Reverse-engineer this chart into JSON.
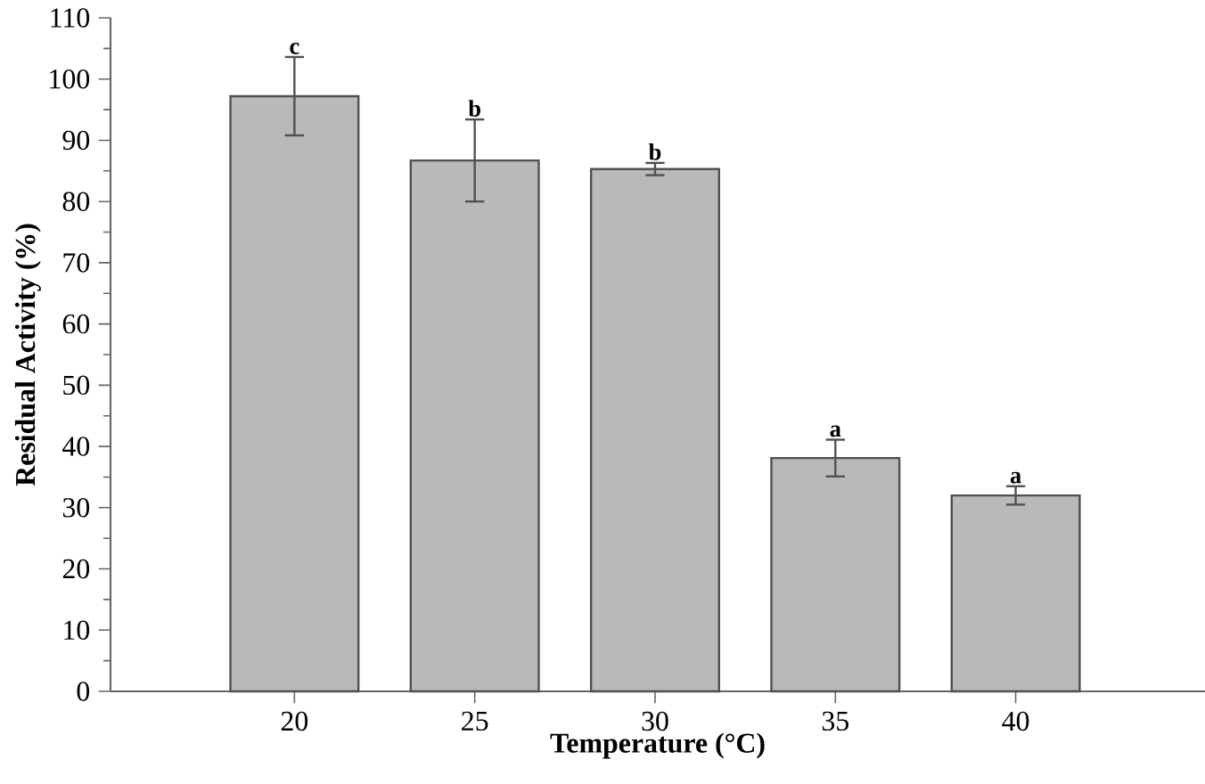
{
  "chart_data": {
    "type": "bar",
    "xlabel": "Temperature (°C)",
    "ylabel": "Residual Activity (%)",
    "categories": [
      "20",
      "25",
      "30",
      "35",
      "40"
    ],
    "values": [
      97.2,
      86.7,
      85.3,
      38.1,
      32.0
    ],
    "errors": [
      6.4,
      6.7,
      1.0,
      3.0,
      1.5
    ],
    "color": "#505050",
    "ylim": [
      0,
      110
    ],
    "yticks": [
      0,
      {
        "value": 5,
        "label": null
      },
      10,
      {
        "value": 15,
        "label": null
      },
      20,
      {
        "value": 25,
        "label": null
      },
      30,
      {
        "value": 35,
        "label": null
      },
      40,
      {
        "value": 45,
        "label": null
      },
      50,
      {
        "value": 55,
        "label": null
      },
      60,
      {
        "value": 65,
        "label": null
      },
      70,
      {
        "value": 75,
        "label": null
      },
      80,
      {
        "value": 85,
        "label": null
      },
      90,
      {
        "value": 95,
        "label": null
      },
      100,
      {
        "value": 105,
        "label": null
      },
      110
    ],
    "annotations": [
      {
        "text": "c",
        "x": "20",
        "y": 103.6
      },
      {
        "text": "b",
        "x": "25",
        "y": 93.4
      },
      {
        "text": "b",
        "x": "30",
        "y": 86.3
      },
      {
        "text": "a",
        "x": "35",
        "y": 41.1
      },
      {
        "text": "a",
        "x": "40",
        "y": 33.5
      }
    ]
  }
}
